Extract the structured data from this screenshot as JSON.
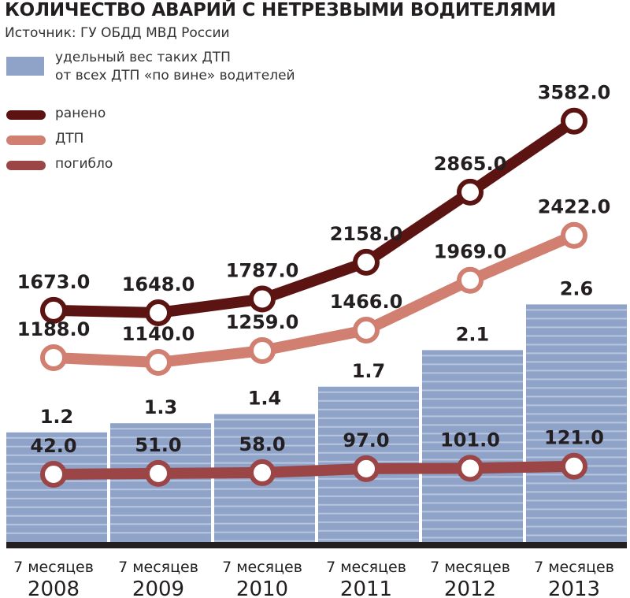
{
  "title": "КОЛИЧЕСТВО АВАРИЙ С НЕТРЕЗВЫМИ ВОДИТЕЛЯМИ",
  "source": "Источник: ГУ ОБДД МВД России",
  "legend": {
    "bar_line1": "удельный вес таких ДТП",
    "bar_line2": "от всех ДТП «по вине» водителей",
    "injured": "ранено",
    "accidents": "ДТП",
    "killed": "погибло"
  },
  "colors": {
    "bar": "#8fa2c7",
    "bar_stripe": "#b7c5de",
    "injured": "#5c1412",
    "accidents": "#d07f70",
    "killed": "#9b4547",
    "baseline": "#231f20"
  },
  "chart_data": {
    "type": "bar+line",
    "categories": [
      {
        "line1": "7 месяцев",
        "line2": "2008"
      },
      {
        "line1": "7 месяцев",
        "line2": "2009"
      },
      {
        "line1": "7 месяцев",
        "line2": "2010"
      },
      {
        "line1": "7 месяцев",
        "line2": "2011"
      },
      {
        "line1": "7 месяцев",
        "line2": "2012"
      },
      {
        "line1": "7 месяцев",
        "line2": "2013"
      }
    ],
    "bars": {
      "name": "удельный вес таких ДТП от всех ДТП «по вине» водителей",
      "values": [
        1.2,
        1.3,
        1.4,
        1.7,
        2.1,
        2.6
      ],
      "labels": [
        "1.2",
        "1.3",
        "1.4",
        "1.7",
        "2.1",
        "2.6"
      ]
    },
    "series": [
      {
        "name": "ранено",
        "key": "injured",
        "values": [
          1673.0,
          1648.0,
          1787.0,
          2158.0,
          2865.0,
          3582.0
        ],
        "labels": [
          "1673.0",
          "1648.0",
          "1787.0",
          "2158.0",
          "2865.0",
          "3582.0"
        ]
      },
      {
        "name": "ДТП",
        "key": "accidents",
        "values": [
          1188.0,
          1140.0,
          1259.0,
          1466.0,
          1969.0,
          2422.0
        ],
        "labels": [
          "1188.0",
          "1140.0",
          "1259.0",
          "1466.0",
          "1969.0",
          "2422.0"
        ]
      },
      {
        "name": "погибло",
        "key": "killed",
        "values": [
          42.0,
          51.0,
          58.0,
          97.0,
          101.0,
          121.0
        ],
        "labels": [
          "42.0",
          "51.0",
          "58.0",
          "97.0",
          "101.0",
          "121.0"
        ]
      }
    ]
  }
}
